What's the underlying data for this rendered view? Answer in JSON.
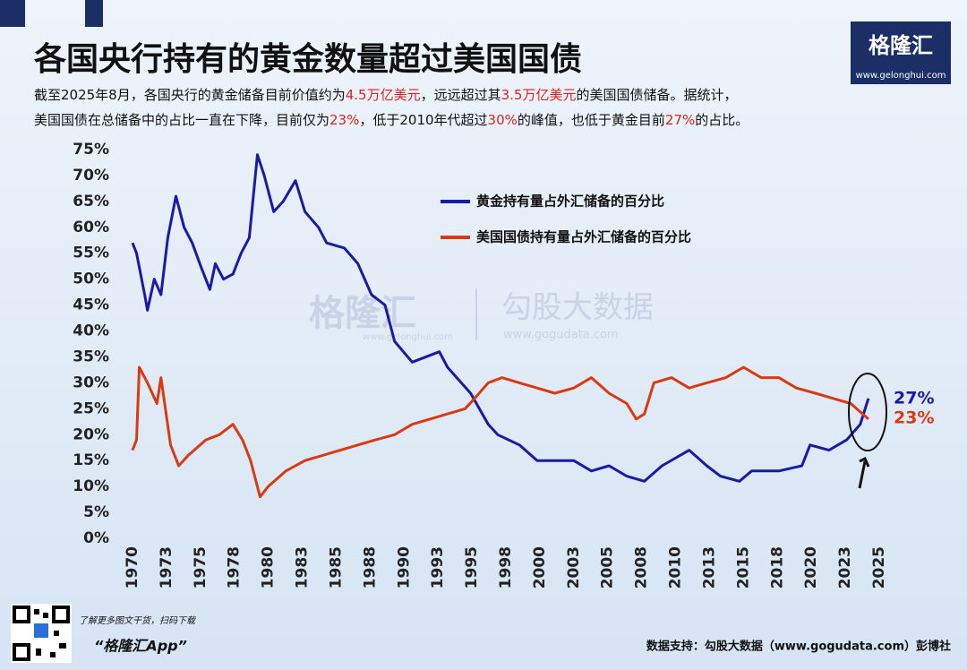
{
  "header": {
    "title": "各国央行持有的黄金数量超过美国国债",
    "subtitle": [
      [
        {
          "text": "截至2025年8月，各国央行的黄金储备目前价值约为"
        },
        {
          "text": "4.5万亿美元",
          "highlight": true
        },
        {
          "text": "，远远超过其"
        },
        {
          "text": "3.5万亿美元",
          "highlight": true
        },
        {
          "text": "的美国国债储备。据统计，"
        }
      ],
      [
        {
          "text": "美国国债在总储备中的占比一直在下降，目前仅为"
        },
        {
          "text": "23%",
          "highlight": true
        },
        {
          "text": "，低于2010年代超过"
        },
        {
          "text": "30%",
          "highlight": true
        },
        {
          "text": "的峰值，也低于黄金目前"
        },
        {
          "text": "27%",
          "highlight": true
        },
        {
          "text": "的占比。"
        }
      ]
    ],
    "logo": "格隆汇",
    "logo_url": "www.gelonghui.com"
  },
  "watermark": {
    "brand": "格隆汇",
    "brand_url": "www.gelonghui.com",
    "data_brand": "勾股大数据",
    "data_url": "www.gogudata.com"
  },
  "chart_data": {
    "type": "line",
    "xlim": [
      1970,
      2025
    ],
    "xticks": [
      1970,
      {
        "value": 1972.5,
        "label": "1973"
      },
      1975,
      {
        "value": 1977.5,
        "label": "1978"
      },
      1980,
      {
        "value": 1982.5,
        "label": "1983"
      },
      1985,
      {
        "value": 1987.5,
        "label": "1988"
      },
      1990,
      {
        "value": 1992.5,
        "label": "1993"
      },
      1995,
      {
        "value": 1997.5,
        "label": "1998"
      },
      2000,
      {
        "value": 2002.5,
        "label": "2003"
      },
      2005,
      {
        "value": 2007.5,
        "label": "2008"
      },
      2010,
      {
        "value": 2012.5,
        "label": "2013"
      },
      2015,
      {
        "value": 2017.5,
        "label": "2018"
      },
      2020,
      {
        "value": 2022.5,
        "label": "2023"
      },
      2025
    ],
    "ylim": [
      0,
      75
    ],
    "yticks": [
      {
        "value": 0,
        "label": "0%"
      },
      {
        "value": 5,
        "label": "5%"
      },
      {
        "value": 10,
        "label": "10%"
      },
      {
        "value": 15,
        "label": "15%"
      },
      {
        "value": 20,
        "label": "20%"
      },
      {
        "value": 25,
        "label": "25%"
      },
      {
        "value": 30,
        "label": "30%"
      },
      {
        "value": 35,
        "label": "35%"
      },
      {
        "value": 40,
        "label": "40%"
      },
      {
        "value": 45,
        "label": "45%"
      },
      {
        "value": 50,
        "label": "50%"
      },
      {
        "value": 55,
        "label": "55%"
      },
      {
        "value": 60,
        "label": "60%"
      },
      {
        "value": 65,
        "label": "65%"
      },
      {
        "value": 70,
        "label": "70%"
      },
      {
        "value": 75,
        "label": "75%"
      }
    ],
    "series": [
      {
        "name": "黄金持有量占外汇储备的百分比",
        "color": "#1a1aa6",
        "x": [
          1970,
          1970.3,
          1970.9,
          1971.1,
          1971.6,
          1972.1,
          1972.6,
          1973.2,
          1973.8,
          1974.4,
          1975.1,
          1975.7,
          1976.1,
          1976.7,
          1977.4,
          1978,
          1978.6,
          1979.2,
          1979.7,
          1980.4,
          1981.1,
          1982,
          1982.7,
          1983.7,
          1984.3,
          1985.6,
          1986.6,
          1987.6,
          1988.6,
          1989.3,
          1990.6,
          1992.6,
          1993.2,
          1994.9,
          1996.2,
          1996.9,
          1998.5,
          1999.8,
          2002.5,
          2003.8,
          2005.1,
          2006.4,
          2007.7,
          2009,
          2011,
          2012.3,
          2013.3,
          2014.7,
          2015.6,
          2017.6,
          2019.3,
          2019.9,
          2021.3,
          2022.6,
          2023.6,
          2024.2
        ],
        "values": [
          57,
          55,
          47,
          44,
          50,
          47,
          58,
          66,
          60,
          57,
          52,
          48,
          53,
          50,
          51,
          55,
          58,
          74,
          70,
          63,
          65,
          69,
          63,
          60,
          57,
          56,
          53,
          47,
          45,
          38,
          34,
          36,
          33,
          28,
          22,
          20,
          18,
          15,
          15,
          13,
          14,
          12,
          11,
          14,
          17,
          14,
          12,
          11,
          13,
          13,
          14,
          18,
          17,
          19,
          22,
          27
        ],
        "end_label": "27%"
      },
      {
        "name": "美国国债持有量占外汇储备的百分比",
        "color": "#d93a12",
        "x": [
          1970,
          1970.3,
          1970.5,
          1971.1,
          1971.8,
          1972.1,
          1972.8,
          1973.4,
          1974.1,
          1975.4,
          1976.4,
          1977.4,
          1978.1,
          1978.7,
          1979.4,
          1980,
          1981.3,
          1982.7,
          1984,
          1985.3,
          1986.6,
          1987.9,
          1989.3,
          1990.6,
          1991.9,
          1993.2,
          1994.5,
          1995.2,
          1996.2,
          1997.2,
          1998.5,
          1999.8,
          2001.1,
          2002.5,
          2003.8,
          2005.1,
          2006.4,
          2007.1,
          2007.7,
          2008.4,
          2009.7,
          2011,
          2012.3,
          2013.7,
          2015,
          2016.3,
          2017.6,
          2018.9,
          2020.3,
          2021.6,
          2022.9,
          2024.2
        ],
        "values": [
          17,
          19,
          33,
          30,
          26,
          31,
          18,
          14,
          16,
          19,
          20,
          22,
          19,
          15,
          8,
          10,
          13,
          15,
          16,
          17,
          18,
          19,
          20,
          22,
          23,
          24,
          25,
          27,
          30,
          31,
          30,
          29,
          28,
          29,
          31,
          28,
          26,
          23,
          24,
          30,
          31,
          29,
          30,
          31,
          33,
          31,
          31,
          29,
          28,
          27,
          26,
          23
        ],
        "end_label": "23%"
      }
    ]
  },
  "footer": {
    "scan_note": "了解更多图文干货，扫码下载",
    "app_name": "“格隆汇App”",
    "source": "数据支持：勾股大数据（www.gogudata.com）彭博社"
  }
}
